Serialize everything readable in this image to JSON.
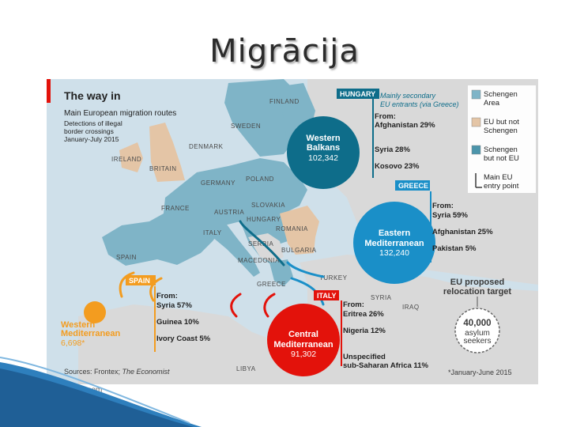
{
  "slide": {
    "title": "Migrācija"
  },
  "map": {
    "title": "The way in",
    "subtitle": "Main European migration routes",
    "subtitle2_lines": [
      "Detections of illegal",
      "border crossings",
      "January-July 2015"
    ],
    "source": "Sources: Frontex; ",
    "source_italic": "The Economist",
    "footnote": "*January-June 2015",
    "footer_url": "Economist.com",
    "colors": {
      "schengen": "#7fb4c7",
      "eu_not_schengen": "#e4c5a6",
      "schengen_not_eu": "#4c95ab",
      "sea": "#cfe0ea",
      "nonEU": "#d9d9d9",
      "red": "#e3120b",
      "orange": "#f39c1f",
      "teal": "#0e6d8a",
      "blue": "#1a8fc8"
    },
    "legend": [
      {
        "label_lines": [
          "Schengen",
          "Area"
        ],
        "color": "#7fb4c7",
        "kind": "swatch"
      },
      {
        "label_lines": [
          "EU but not",
          "Schengen"
        ],
        "color": "#e4c5a6",
        "kind": "swatch"
      },
      {
        "label_lines": [
          "Schengen",
          "but not EU"
        ],
        "color": "#4c95ab",
        "kind": "swatch"
      },
      {
        "label_lines": [
          "Main EU",
          "entry point"
        ],
        "color": "#3a3a3a",
        "kind": "marker"
      }
    ],
    "countries": [
      "FINLAND",
      "SWEDEN",
      "DENMARK",
      "IRELAND",
      "BRITAIN",
      "GERMANY",
      "POLAND",
      "FRANCE",
      "AUSTRIA",
      "SLOVAKIA",
      "HUNGARY",
      "ROMANIA",
      "ITALY",
      "SERBIA",
      "BULGARIA",
      "SPAIN",
      "MACEDONIA",
      "GREECE",
      "TURKEY",
      "SYRIA",
      "IRAQ",
      "LIBYA"
    ],
    "routes": [
      {
        "name_lines": [
          "Western",
          "Balkans"
        ],
        "value": "102,342",
        "color": "#0e6d8a",
        "entry": "HUNGARY",
        "note_lines": [
          "Mainly secondary",
          "EU entrants (via Greece)"
        ],
        "from_label": "From:",
        "origins": [
          {
            "country": "Afghanistan",
            "pct": "29%"
          },
          {
            "country": "Syria",
            "pct": "28%"
          },
          {
            "country": "Kosovo",
            "pct": "23%"
          }
        ]
      },
      {
        "name_lines": [
          "Eastern",
          "Mediterranean"
        ],
        "value": "132,240",
        "color": "#1a8fc8",
        "entry": "GREECE",
        "from_label": "From:",
        "origins": [
          {
            "country": "Syria",
            "pct": "59%"
          },
          {
            "country": "Afghanistan",
            "pct": "25%"
          },
          {
            "country": "Pakistan",
            "pct": "5%"
          }
        ]
      },
      {
        "name_lines": [
          "Central",
          "Mediterranean"
        ],
        "value": "91,302",
        "color": "#e3120b",
        "entry": "ITALY",
        "from_label": "From:",
        "origins": [
          {
            "country": "Eritrea",
            "pct": "26%"
          },
          {
            "country": "Nigeria",
            "pct": "12%"
          }
        ],
        "extra_lines": [
          "Unspecified",
          "sub-Saharan Africa 11%"
        ]
      },
      {
        "name_lines": [
          "Western",
          "Mediterranean"
        ],
        "value": "6,698*",
        "color": "#f39c1f",
        "entry": "SPAIN",
        "from_label": "From:",
        "origins": [
          {
            "country": "Syria",
            "pct": "57%"
          },
          {
            "country": "Guinea",
            "pct": "10%"
          },
          {
            "country": "Ivory Coast",
            "pct": "5%"
          }
        ]
      }
    ],
    "relocation": {
      "title_lines": [
        "EU proposed",
        "relocation target"
      ],
      "value": "40,000",
      "unit_lines": [
        "asylum",
        "seekers"
      ]
    }
  }
}
